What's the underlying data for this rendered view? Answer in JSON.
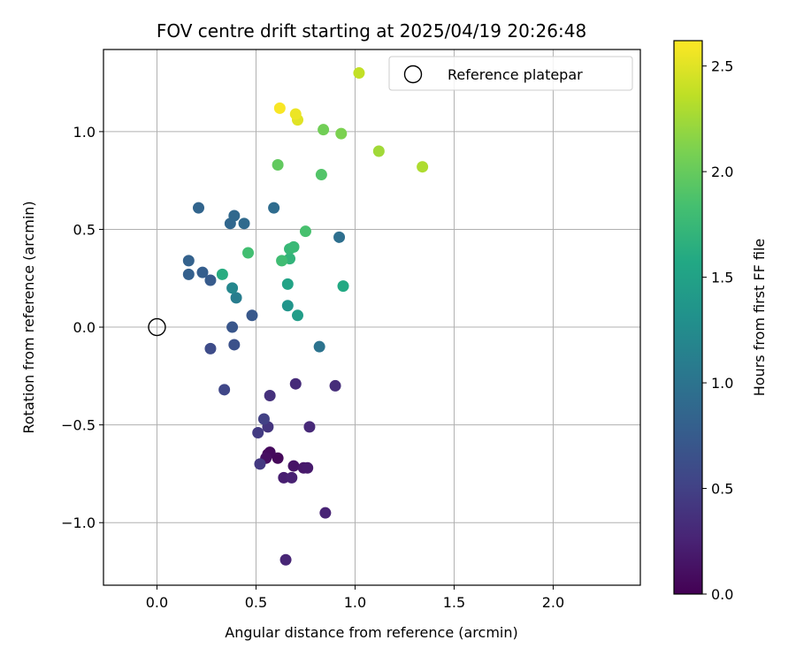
{
  "chart_data": {
    "type": "scatter",
    "title": "FOV centre drift starting at 2025/04/19 20:26:48",
    "xlabel": "Angular distance from reference (arcmin)",
    "ylabel": "Rotation from reference (arcmin)",
    "xlim": [
      -0.27,
      2.44
    ],
    "ylim": [
      -1.32,
      1.42
    ],
    "xticks": [
      0.0,
      0.5,
      1.0,
      1.5,
      2.0
    ],
    "xtick_labels": [
      "0.0",
      "0.5",
      "1.0",
      "1.5",
      "2.0"
    ],
    "yticks": [
      -1.0,
      -0.5,
      0.0,
      0.5,
      1.0
    ],
    "ytick_labels": [
      "−1.0",
      "−0.5",
      "0.0",
      "0.5",
      "1.0"
    ],
    "grid": true,
    "legend": {
      "placement": "top-right",
      "entries": [
        "Reference platepar"
      ]
    },
    "reference_point": {
      "x": 0.0,
      "y": 0.0
    },
    "colorbar": {
      "label": "Hours from first FF file",
      "range": [
        0.0,
        2.62
      ],
      "ticks": [
        0.0,
        0.5,
        1.0,
        1.5,
        2.0,
        2.5
      ],
      "tick_labels": [
        "0.0",
        "0.5",
        "1.0",
        "1.5",
        "2.0",
        "2.5"
      ],
      "colormap": "viridis"
    },
    "points": [
      {
        "x": 0.56,
        "y": -0.65,
        "h": 0.02
      },
      {
        "x": 0.61,
        "y": -0.67,
        "h": 0.05
      },
      {
        "x": 0.57,
        "y": -0.64,
        "h": 0.07
      },
      {
        "x": 0.55,
        "y": -0.67,
        "h": 0.1
      },
      {
        "x": 0.69,
        "y": -0.71,
        "h": 0.14
      },
      {
        "x": 0.74,
        "y": -0.72,
        "h": 0.17
      },
      {
        "x": 0.76,
        "y": -0.72,
        "h": 0.19
      },
      {
        "x": 0.64,
        "y": -0.77,
        "h": 0.22
      },
      {
        "x": 0.68,
        "y": -0.77,
        "h": 0.24
      },
      {
        "x": 0.85,
        "y": -0.95,
        "h": 0.26
      },
      {
        "x": 0.65,
        "y": -1.19,
        "h": 0.28
      },
      {
        "x": 0.77,
        "y": -0.51,
        "h": 0.3
      },
      {
        "x": 0.7,
        "y": -0.29,
        "h": 0.32
      },
      {
        "x": 0.9,
        "y": -0.3,
        "h": 0.34
      },
      {
        "x": 0.57,
        "y": -0.35,
        "h": 0.37
      },
      {
        "x": 0.56,
        "y": -0.51,
        "h": 0.4
      },
      {
        "x": 0.52,
        "y": -0.7,
        "h": 0.43
      },
      {
        "x": 0.51,
        "y": -0.54,
        "h": 0.45
      },
      {
        "x": 0.54,
        "y": -0.47,
        "h": 0.5
      },
      {
        "x": 0.34,
        "y": -0.32,
        "h": 0.55
      },
      {
        "x": 0.27,
        "y": -0.11,
        "h": 0.6
      },
      {
        "x": 0.39,
        "y": -0.09,
        "h": 0.65
      },
      {
        "x": 0.38,
        "y": 0.0,
        "h": 0.7
      },
      {
        "x": 0.48,
        "y": 0.06,
        "h": 0.72
      },
      {
        "x": 0.27,
        "y": 0.24,
        "h": 0.75
      },
      {
        "x": 0.23,
        "y": 0.28,
        "h": 0.78
      },
      {
        "x": 0.16,
        "y": 0.27,
        "h": 0.8
      },
      {
        "x": 0.16,
        "y": 0.34,
        "h": 0.82
      },
      {
        "x": 0.21,
        "y": 0.61,
        "h": 0.85
      },
      {
        "x": 0.37,
        "y": 0.53,
        "h": 0.87
      },
      {
        "x": 0.39,
        "y": 0.57,
        "h": 0.88
      },
      {
        "x": 0.44,
        "y": 0.53,
        "h": 0.9
      },
      {
        "x": 0.59,
        "y": 0.61,
        "h": 0.92
      },
      {
        "x": 0.92,
        "y": 0.46,
        "h": 0.95
      },
      {
        "x": 0.82,
        "y": -0.1,
        "h": 1.0
      },
      {
        "x": 0.4,
        "y": 0.15,
        "h": 1.1
      },
      {
        "x": 0.38,
        "y": 0.2,
        "h": 1.2
      },
      {
        "x": 0.66,
        "y": 0.11,
        "h": 1.35
      },
      {
        "x": 0.71,
        "y": 0.06,
        "h": 1.45
      },
      {
        "x": 0.66,
        "y": 0.22,
        "h": 1.52
      },
      {
        "x": 0.94,
        "y": 0.21,
        "h": 1.58
      },
      {
        "x": 0.33,
        "y": 0.27,
        "h": 1.62
      },
      {
        "x": 0.67,
        "y": 0.35,
        "h": 1.7
      },
      {
        "x": 0.67,
        "y": 0.4,
        "h": 1.74
      },
      {
        "x": 0.69,
        "y": 0.41,
        "h": 1.76
      },
      {
        "x": 0.63,
        "y": 0.34,
        "h": 1.8
      },
      {
        "x": 0.46,
        "y": 0.38,
        "h": 1.82
      },
      {
        "x": 0.75,
        "y": 0.49,
        "h": 1.85
      },
      {
        "x": 0.83,
        "y": 0.78,
        "h": 1.9
      },
      {
        "x": 0.61,
        "y": 0.83,
        "h": 1.98
      },
      {
        "x": 0.84,
        "y": 1.01,
        "h": 2.05
      },
      {
        "x": 0.93,
        "y": 0.99,
        "h": 2.1
      },
      {
        "x": 1.12,
        "y": 0.9,
        "h": 2.25
      },
      {
        "x": 1.34,
        "y": 0.82,
        "h": 2.3
      },
      {
        "x": 1.02,
        "y": 1.3,
        "h": 2.38
      },
      {
        "x": 0.71,
        "y": 1.06,
        "h": 2.5
      },
      {
        "x": 0.7,
        "y": 1.09,
        "h": 2.55
      },
      {
        "x": 0.62,
        "y": 1.12,
        "h": 2.6
      }
    ]
  }
}
